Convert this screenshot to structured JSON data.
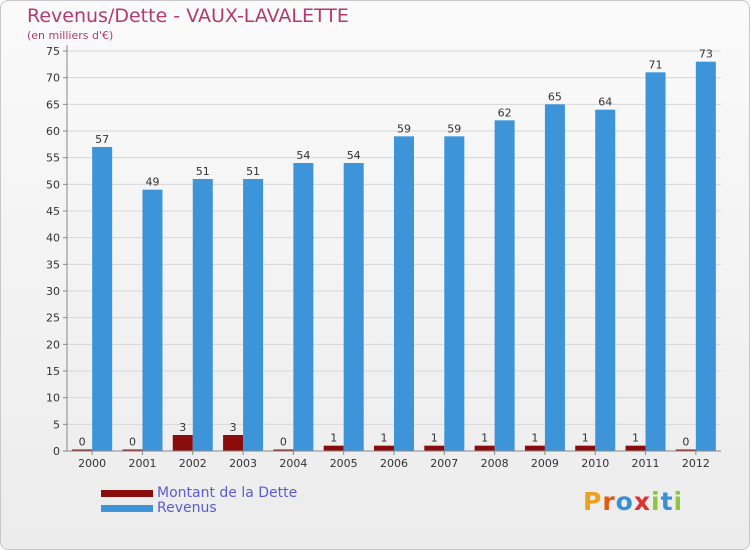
{
  "title": "Revenus/Dette - VAUX-LAVALETTE",
  "subtitle": "(en milliers d'€)",
  "logo": {
    "letters": [
      "P",
      "r",
      "o",
      "x",
      "i",
      "t",
      "i"
    ],
    "colors": [
      "#f0a020",
      "#e05a10",
      "#3a8fd8",
      "#e03030",
      "#8cc63f",
      "#3a8fd8",
      "#8cc63f"
    ]
  },
  "colors": {
    "dette": "#8b0c0c",
    "revenus": "#3d94d8",
    "axis": "#888888",
    "grid": "#d7d7d7"
  },
  "chart_data": {
    "type": "bar",
    "categories": [
      "2000",
      "2001",
      "2002",
      "2003",
      "2004",
      "2005",
      "2006",
      "2007",
      "2008",
      "2009",
      "2010",
      "2011",
      "2012"
    ],
    "series": [
      {
        "name": "Montant de la Dette",
        "values": [
          0,
          0,
          3,
          3,
          0,
          1,
          1,
          1,
          1,
          1,
          1,
          1,
          0
        ]
      },
      {
        "name": "Revenus",
        "values": [
          57,
          49,
          51,
          51,
          54,
          54,
          59,
          59,
          62,
          65,
          64,
          71,
          73
        ]
      }
    ],
    "ylim": [
      0,
      75
    ],
    "yticks": [
      0,
      5,
      10,
      15,
      20,
      25,
      30,
      35,
      40,
      45,
      50,
      55,
      60,
      65,
      70,
      75
    ],
    "grid": true,
    "legend": "bottom-left"
  }
}
